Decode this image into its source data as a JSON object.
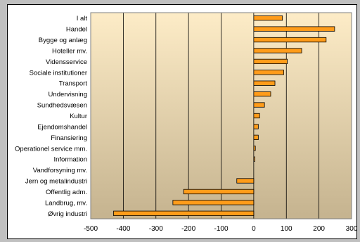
{
  "chart_data": {
    "type": "bar",
    "orientation": "horizontal",
    "categories": [
      "I alt",
      "Handel",
      "Bygge og anlæg",
      "Hoteller mv.",
      "Vidensservice",
      "Sociale institutioner",
      "Transport",
      "Undervisning",
      "Sundhedsvæsen",
      "Kultur",
      "Ejendomshandel",
      "Finansiering",
      "Operationel service mm.",
      "Information",
      "Vandforsyning mv.",
      "Jern og metalindustri",
      "Offentlig adm.",
      "Landbrug, mv.",
      "Øvrig industri"
    ],
    "values": [
      88,
      248,
      222,
      147,
      103,
      92,
      65,
      52,
      33,
      18,
      14,
      14,
      5,
      3,
      0,
      -52,
      -215,
      -248,
      -430
    ],
    "xlim": [
      -500,
      300
    ],
    "xticks": [
      "-500",
      "-400",
      "-300",
      "-200",
      "-100",
      "0",
      "100",
      "200",
      "300"
    ],
    "xtick_values": [
      -500,
      -400,
      -300,
      -200,
      -100,
      0,
      100,
      200,
      300
    ],
    "grid": "vertical",
    "legend": "none",
    "colors": {
      "bar_fill": "#ff9c1a",
      "bar_stroke": "#000000",
      "plot_bg_top": "#fdecc7",
      "plot_bg_bottom": "#c5b38f",
      "gridline": "#000000",
      "outer_bg": "#c0c0c0"
    }
  }
}
